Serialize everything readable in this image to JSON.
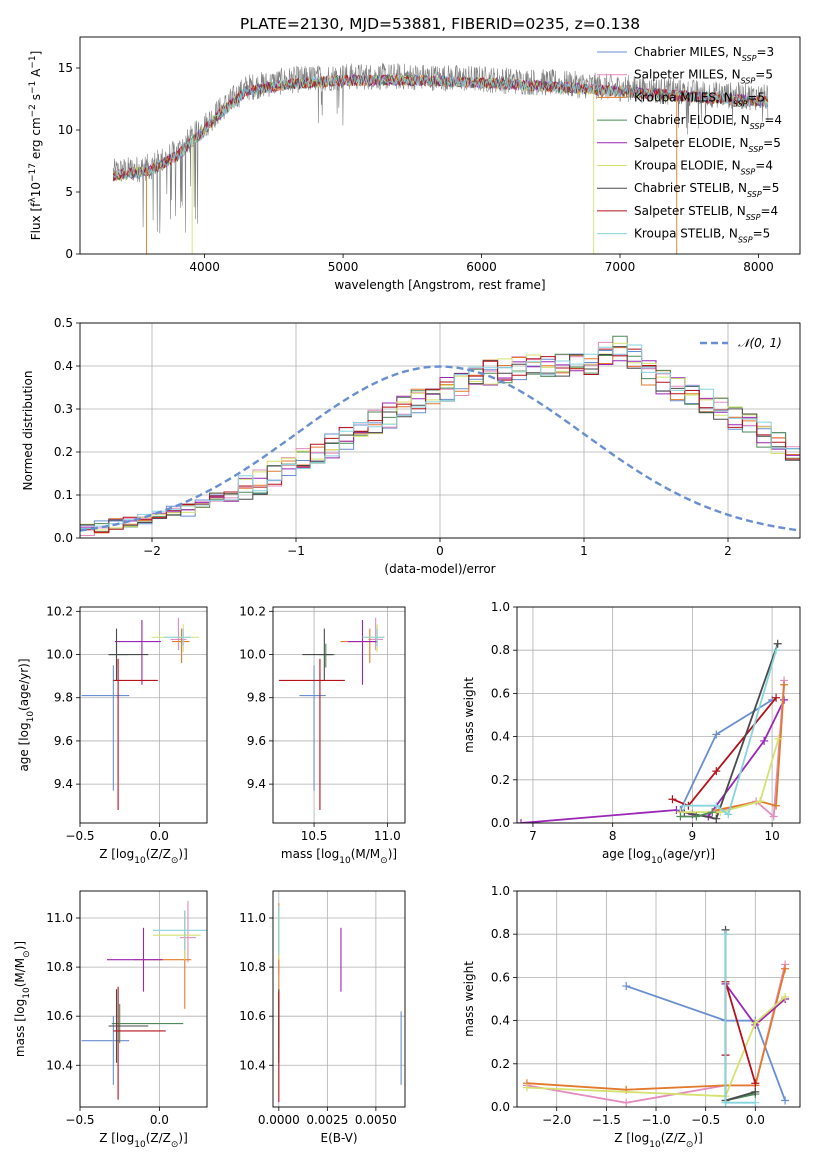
{
  "figure": {
    "title": "PLATE=2130, MJD=53881, FIBERID=0235, z=0.138"
  },
  "colors": {
    "chabrier_miles": "#6a8fd0",
    "salpeter_miles": "#e48bbf",
    "kroupa_miles": "#e27a2c",
    "chabrier_elodie": "#4e8a58",
    "salpeter_elodie": "#9b26b6",
    "kroupa_elodie": "#d5e26e",
    "chabrier_stelib": "#4a4a4a",
    "salpeter_stelib": "#b5121b",
    "kroupa_stelib": "#86d4dd",
    "spectrum": "#808080",
    "normal": "#6a8fd0"
  },
  "legend_spectrum": [
    {
      "model": "Chabrier MILES",
      "n": "3",
      "color_key": "chabrier_miles"
    },
    {
      "model": "Salpeter MILES",
      "n": "5",
      "color_key": "salpeter_miles"
    },
    {
      "model": "Kroupa MILES",
      "n": "5",
      "color_key": "kroupa_miles"
    },
    {
      "model": "Chabrier ELODIE",
      "n": "4",
      "color_key": "chabrier_elodie"
    },
    {
      "model": "Salpeter ELODIE",
      "n": "5",
      "color_key": "salpeter_elodie"
    },
    {
      "model": "Kroupa ELODIE",
      "n": "4",
      "color_key": "kroupa_elodie"
    },
    {
      "model": "Chabrier STELIB",
      "n": "5",
      "color_key": "chabrier_stelib"
    },
    {
      "model": "Salpeter STELIB",
      "n": "4",
      "color_key": "salpeter_stelib"
    },
    {
      "model": "Kroupa STELIB",
      "n": "5",
      "color_key": "kroupa_stelib"
    }
  ],
  "legend_nssp_prefix": "N",
  "legend_nssp_sub": "SSP",
  "chart_data": [
    {
      "id": "spectrum",
      "type": "line",
      "xlabel": "wavelength [Angstrom, rest frame]",
      "ylabel_parts": [
        "Flux [f",
        "λ",
        "10",
        "−17",
        " erg cm",
        "−2",
        " s",
        "−1",
        " A",
        "−1",
        "]"
      ],
      "xlim": [
        3100,
        8300
      ],
      "ylim": [
        0,
        17.5
      ],
      "xticks": [
        4000,
        5000,
        6000,
        7000,
        8000
      ],
      "yticks": [
        0,
        5,
        10,
        15
      ],
      "grid": false,
      "legend": "right",
      "observed_x_range": [
        3340,
        8070
      ],
      "approx_continuum": [
        {
          "x": 3340,
          "y": 6.6
        },
        {
          "x": 3600,
          "y": 7.0
        },
        {
          "x": 3800,
          "y": 8.2
        },
        {
          "x": 3950,
          "y": 9.8
        },
        {
          "x": 4100,
          "y": 11.5
        },
        {
          "x": 4300,
          "y": 13.4
        },
        {
          "x": 4600,
          "y": 14.0
        },
        {
          "x": 5000,
          "y": 14.3
        },
        {
          "x": 5500,
          "y": 14.3
        },
        {
          "x": 6000,
          "y": 14.1
        },
        {
          "x": 6500,
          "y": 13.8
        },
        {
          "x": 7000,
          "y": 13.4
        },
        {
          "x": 7500,
          "y": 13.0
        },
        {
          "x": 8070,
          "y": 12.6
        }
      ]
    },
    {
      "id": "residuals",
      "type": "line",
      "xlabel": "(data-model)/error",
      "ylabel": "Normed distribution",
      "xlim": [
        -2.5,
        2.5
      ],
      "ylim": [
        0,
        0.5
      ],
      "xticks": [
        -2,
        -1,
        0,
        1,
        2
      ],
      "yticks": [
        0.0,
        0.1,
        0.2,
        0.3,
        0.4,
        0.5
      ],
      "grid": true,
      "legend": "top-right",
      "legend_label": "𝒩(0, 1)",
      "bin_width": 0.1,
      "mean_histogram": [
        0.02,
        0.025,
        0.03,
        0.035,
        0.045,
        0.055,
        0.06,
        0.065,
        0.08,
        0.09,
        0.1,
        0.115,
        0.13,
        0.15,
        0.165,
        0.18,
        0.2,
        0.215,
        0.235,
        0.25,
        0.27,
        0.285,
        0.305,
        0.32,
        0.335,
        0.345,
        0.36,
        0.37,
        0.385,
        0.39,
        0.395,
        0.4,
        0.4,
        0.405,
        0.405,
        0.41,
        0.43,
        0.44,
        0.42,
        0.385,
        0.365,
        0.345,
        0.335,
        0.32,
        0.3,
        0.275,
        0.265,
        0.24,
        0.22,
        0.205,
        0.18,
        0.165,
        0.145,
        0.13,
        0.11,
        0.1,
        0.085,
        0.075,
        0.07,
        0.065,
        0.06,
        0.055,
        0.05,
        0.045,
        0.04,
        0.04,
        0.035,
        0.035,
        0.03,
        0.03
      ]
    },
    {
      "id": "age-vs-Z",
      "type": "scatter",
      "xlabel_parts": [
        "Z [log",
        "10",
        "(Z/Z",
        "⊙",
        ")]"
      ],
      "ylabel_parts": [
        "age  [log",
        "10",
        "(age/yr)]"
      ],
      "xlim": [
        -0.5,
        0.3
      ],
      "ylim": [
        9.22,
        10.22
      ],
      "xticks": [
        -0.5,
        0.0
      ],
      "yticks": [
        9.4,
        9.6,
        9.8,
        10.0,
        10.2
      ],
      "grid": true,
      "points": [
        {
          "key": "chabrier_miles",
          "x": -0.29,
          "y": 9.81,
          "xerr": [
            0.2,
            0.1
          ],
          "yerr": [
            0.44,
            0.14
          ]
        },
        {
          "key": "salpeter_miles",
          "x": 0.12,
          "y": 10.07,
          "xerr": [
            0.05,
            0.05
          ],
          "yerr": [
            0.05,
            0.1
          ]
        },
        {
          "key": "kroupa_miles",
          "x": 0.14,
          "y": 10.06,
          "xerr": [
            0.06,
            0.05
          ],
          "yerr": [
            0.1,
            0.06
          ]
        },
        {
          "key": "chabrier_elodie",
          "x": -0.27,
          "y": 10.0,
          "xerr": [
            0.05,
            0.07
          ],
          "yerr": [
            0.06,
            0.05
          ]
        },
        {
          "key": "salpeter_elodie",
          "x": -0.11,
          "y": 10.06,
          "xerr": [
            0.17,
            0.12
          ],
          "yerr": [
            0.2,
            0.1
          ]
        },
        {
          "key": "kroupa_elodie",
          "x": 0.15,
          "y": 10.08,
          "xerr": [
            0.2,
            0.1
          ],
          "yerr": [
            0.07,
            0.06
          ]
        },
        {
          "key": "chabrier_stelib",
          "x": -0.27,
          "y": 10.0,
          "xerr": [
            0.05,
            0.2
          ],
          "yerr": [
            0.12,
            0.12
          ]
        },
        {
          "key": "salpeter_stelib",
          "x": -0.26,
          "y": 9.88,
          "xerr": [
            0.03,
            0.25
          ],
          "yerr": [
            0.6,
            0.1
          ]
        },
        {
          "key": "kroupa_stelib",
          "x": 0.15,
          "y": 10.08,
          "xerr": [
            0.12,
            0.05
          ],
          "yerr": [
            0.04,
            0.04
          ]
        }
      ]
    },
    {
      "id": "age-vs-mass",
      "type": "scatter",
      "xlabel_parts": [
        "mass [log",
        "10",
        "(M/M",
        "⊙",
        ")]"
      ],
      "ylabel": "",
      "xlim": [
        10.22,
        11.12
      ],
      "ylim": [
        9.22,
        10.22
      ],
      "xticks": [
        10.5,
        11.0
      ],
      "yticks": [
        9.4,
        9.6,
        9.8,
        10.0,
        10.2
      ],
      "grid": true,
      "points": [
        {
          "key": "chabrier_miles",
          "x": 10.5,
          "y": 9.81,
          "xerr": [
            0.1,
            0.08
          ],
          "yerr": [
            0.44,
            0.14
          ]
        },
        {
          "key": "salpeter_miles",
          "x": 10.92,
          "y": 10.07,
          "xerr": [
            0.05,
            0.05
          ],
          "yerr": [
            0.05,
            0.1
          ]
        },
        {
          "key": "kroupa_miles",
          "x": 10.88,
          "y": 10.06,
          "xerr": [
            0.2,
            0.05
          ],
          "yerr": [
            0.1,
            0.06
          ]
        },
        {
          "key": "chabrier_elodie",
          "x": 10.58,
          "y": 10.0,
          "xerr": [
            0.05,
            0.06
          ],
          "yerr": [
            0.06,
            0.05
          ]
        },
        {
          "key": "salpeter_elodie",
          "x": 10.83,
          "y": 10.06,
          "xerr": [
            0.1,
            0.1
          ],
          "yerr": [
            0.2,
            0.1
          ]
        },
        {
          "key": "kroupa_elodie",
          "x": 10.93,
          "y": 10.08,
          "xerr": [
            0.1,
            0.05
          ],
          "yerr": [
            0.07,
            0.06
          ]
        },
        {
          "key": "chabrier_stelib",
          "x": 10.57,
          "y": 10.0,
          "xerr": [
            0.15,
            0.06
          ],
          "yerr": [
            0.12,
            0.12
          ]
        },
        {
          "key": "salpeter_stelib",
          "x": 10.54,
          "y": 9.88,
          "xerr": [
            0.28,
            0.17
          ],
          "yerr": [
            0.6,
            0.1
          ]
        },
        {
          "key": "kroupa_stelib",
          "x": 10.93,
          "y": 10.08,
          "xerr": [
            0.1,
            0.05
          ],
          "yerr": [
            0.04,
            0.04
          ]
        }
      ]
    },
    {
      "id": "weight-vs-age",
      "type": "line",
      "xlabel_parts": [
        "age  [log",
        "10",
        "(age/yr)]"
      ],
      "ylabel": "mass weight",
      "xlim": [
        6.8,
        10.35
      ],
      "ylim": [
        0,
        1.0
      ],
      "xticks": [
        7,
        8,
        9,
        10
      ],
      "yticks": [
        0.0,
        0.2,
        0.4,
        0.6,
        0.8,
        1.0
      ],
      "grid": true,
      "series": [
        {
          "key": "salpeter_elodie",
          "x": [
            6.85,
            8.8,
            9.0,
            9.2,
            9.9,
            10.15
          ],
          "y": [
            0.0,
            0.06,
            0.04,
            0.03,
            0.38,
            0.57
          ]
        },
        {
          "key": "chabrier_miles",
          "x": [
            8.85,
            9.3,
            10.0
          ],
          "y": [
            0.06,
            0.41,
            0.57
          ]
        },
        {
          "key": "salpeter_stelib",
          "x": [
            8.75,
            8.95,
            9.3,
            10.05
          ],
          "y": [
            0.11,
            0.08,
            0.24,
            0.58
          ]
        },
        {
          "key": "chabrier_stelib",
          "x": [
            8.9,
            9.3,
            10.07
          ],
          "y": [
            0.05,
            0.02,
            0.83
          ]
        },
        {
          "key": "salpeter_miles",
          "x": [
            9.25,
            9.8,
            10.02,
            10.15
          ],
          "y": [
            0.05,
            0.1,
            0.03,
            0.66
          ]
        },
        {
          "key": "kroupa_miles",
          "x": [
            9.3,
            9.85,
            10.05,
            10.15
          ],
          "y": [
            0.06,
            0.1,
            0.08,
            0.64
          ]
        },
        {
          "key": "kroupa_elodie",
          "x": [
            8.85,
            9.35,
            9.85,
            10.08
          ],
          "y": [
            0.05,
            0.05,
            0.1,
            0.39
          ]
        },
        {
          "key": "kroupa_stelib",
          "x": [
            8.9,
            9.3,
            9.45,
            10.05
          ],
          "y": [
            0.08,
            0.08,
            0.04,
            0.8
          ]
        },
        {
          "key": "chabrier_elodie",
          "x": [
            8.85,
            9.05,
            9.25
          ],
          "y": [
            0.03,
            0.03,
            0.05
          ]
        }
      ]
    },
    {
      "id": "mass-vs-Z",
      "type": "scatter",
      "xlabel_parts": [
        "Z [log",
        "10",
        "(Z/Z",
        "⊙",
        ")]"
      ],
      "ylabel_parts": [
        "mass [log",
        "10",
        "(M/M",
        "⊙",
        ")]"
      ],
      "xlim": [
        -0.5,
        0.3
      ],
      "ylim": [
        10.23,
        11.11
      ],
      "xticks": [
        -0.5,
        0.0
      ],
      "yticks": [
        10.4,
        10.6,
        10.8,
        11.0
      ],
      "grid": true,
      "points": [
        {
          "key": "chabrier_miles",
          "x": -0.29,
          "y": 10.5,
          "xerr": [
            0.2,
            0.1
          ],
          "yerr": [
            0.18,
            0.1
          ]
        },
        {
          "key": "salpeter_miles",
          "x": 0.18,
          "y": 10.92,
          "xerr": [
            0.05,
            0.05
          ],
          "yerr": [
            0.1,
            0.15
          ]
        },
        {
          "key": "kroupa_miles",
          "x": 0.16,
          "y": 10.83,
          "xerr": [
            0.32,
            0.04
          ],
          "yerr": [
            0.2,
            0.2
          ]
        },
        {
          "key": "chabrier_elodie",
          "x": -0.25,
          "y": 10.57,
          "xerr": [
            0.05,
            0.4
          ],
          "yerr": [
            0.08,
            0.08
          ]
        },
        {
          "key": "salpeter_elodie",
          "x": -0.1,
          "y": 10.83,
          "xerr": [
            0.23,
            0.12
          ],
          "yerr": [
            0.13,
            0.13
          ]
        },
        {
          "key": "kroupa_elodie",
          "x": 0.16,
          "y": 10.93,
          "xerr": [
            0.2,
            0.1
          ],
          "yerr": [
            0.1,
            0.1
          ]
        },
        {
          "key": "chabrier_stelib",
          "x": -0.27,
          "y": 10.56,
          "xerr": [
            0.05,
            0.2
          ],
          "yerr": [
            0.15,
            0.15
          ]
        },
        {
          "key": "salpeter_stelib",
          "x": -0.26,
          "y": 10.54,
          "xerr": [
            0.03,
            0.3
          ],
          "yerr": [
            0.28,
            0.18
          ]
        },
        {
          "key": "kroupa_stelib",
          "x": 0.16,
          "y": 10.95,
          "xerr": [
            0.2,
            0.3
          ],
          "yerr": [
            0.08,
            0.08
          ]
        }
      ]
    },
    {
      "id": "mass-vs-EBV",
      "type": "scatter",
      "xlabel": "E(B-V)",
      "ylabel": "",
      "xlim": [
        -0.0003,
        0.0065
      ],
      "ylim": [
        10.23,
        11.11
      ],
      "xticks": [
        0.0,
        0.0025,
        0.005
      ],
      "xticklabels": [
        "0.0000",
        "0.0025",
        "0.0050"
      ],
      "yticks": [
        10.4,
        10.6,
        10.8,
        11.0
      ],
      "grid": true,
      "points": [
        {
          "key": "chabrier_miles",
          "x": 0.0063,
          "y": 10.47,
          "yerr": [
            0.15,
            0.15
          ]
        },
        {
          "key": "salpeter_miles",
          "x": 0.0,
          "y": 10.92,
          "yerr": [
            0.15,
            0.12
          ]
        },
        {
          "key": "kroupa_miles",
          "x": 0.0,
          "y": 10.86,
          "yerr": [
            0.2,
            0.2
          ]
        },
        {
          "key": "chabrier_elodie",
          "x": 0.0,
          "y": 10.57,
          "yerr": [
            0.1,
            0.1
          ]
        },
        {
          "key": "salpeter_elodie",
          "x": 0.0032,
          "y": 10.83,
          "yerr": [
            0.13,
            0.13
          ]
        },
        {
          "key": "kroupa_elodie",
          "x": 0.0,
          "y": 10.93,
          "yerr": [
            0.1,
            0.1
          ]
        },
        {
          "key": "chabrier_stelib",
          "x": 0.0,
          "y": 10.56,
          "yerr": [
            0.15,
            0.15
          ]
        },
        {
          "key": "salpeter_stelib",
          "x": 0.0,
          "y": 10.52,
          "yerr": [
            0.27,
            0.18
          ]
        },
        {
          "key": "kroupa_stelib",
          "x": 0.0,
          "y": 10.95,
          "yerr": [
            0.1,
            0.1
          ]
        }
      ]
    },
    {
      "id": "weight-vs-Z",
      "type": "line",
      "xlabel_parts": [
        "Z [log",
        "10",
        "(Z/Z",
        "⊙",
        ")]"
      ],
      "ylabel": "mass weight",
      "xlim": [
        -2.4,
        0.45
      ],
      "ylim": [
        0,
        1.0
      ],
      "xticks": [
        -2.0,
        -1.5,
        -1.0,
        -0.5,
        0.0
      ],
      "yticks": [
        0.0,
        0.2,
        0.4,
        0.6,
        0.8,
        1.0
      ],
      "grid": true,
      "series": [
        {
          "key": "chabrier_miles",
          "x": [
            -1.3,
            -0.3,
            0.0,
            0.3
          ],
          "y": [
            0.56,
            0.4,
            0.4,
            0.03
          ]
        },
        {
          "key": "salpeter_miles",
          "x": [
            -2.3,
            -1.3,
            -0.3,
            0.0,
            0.3
          ],
          "y": [
            0.1,
            0.02,
            0.1,
            0.1,
            0.66
          ]
        },
        {
          "key": "kroupa_miles",
          "x": [
            -2.3,
            -1.3,
            -0.3,
            0.0,
            0.3
          ],
          "y": [
            0.11,
            0.08,
            0.1,
            0.1,
            0.64
          ]
        },
        {
          "key": "chabrier_elodie",
          "x": [
            -0.3,
            0.0
          ],
          "y": [
            0.03,
            0.06
          ]
        },
        {
          "key": "salpeter_elodie",
          "x": [
            -0.3,
            0.0,
            0.3
          ],
          "y": [
            0.57,
            0.38,
            0.5
          ]
        },
        {
          "key": "kroupa_elodie",
          "x": [
            -2.3,
            -0.3,
            0.0,
            0.3
          ],
          "y": [
            0.09,
            0.05,
            0.39,
            0.51
          ]
        },
        {
          "key": "chabrier_stelib",
          "x": [
            -0.3,
            -0.3,
            0.0
          ],
          "y": [
            0.82,
            0.03,
            0.07
          ]
        },
        {
          "key": "salpeter_stelib",
          "x": [
            -0.3,
            -0.3,
            0.0
          ],
          "y": [
            0.24,
            0.58,
            0.11
          ]
        },
        {
          "key": "kroupa_stelib",
          "x": [
            -0.3,
            -0.3,
            0.0
          ],
          "y": [
            0.8,
            0.02,
            0.02
          ]
        }
      ]
    }
  ]
}
